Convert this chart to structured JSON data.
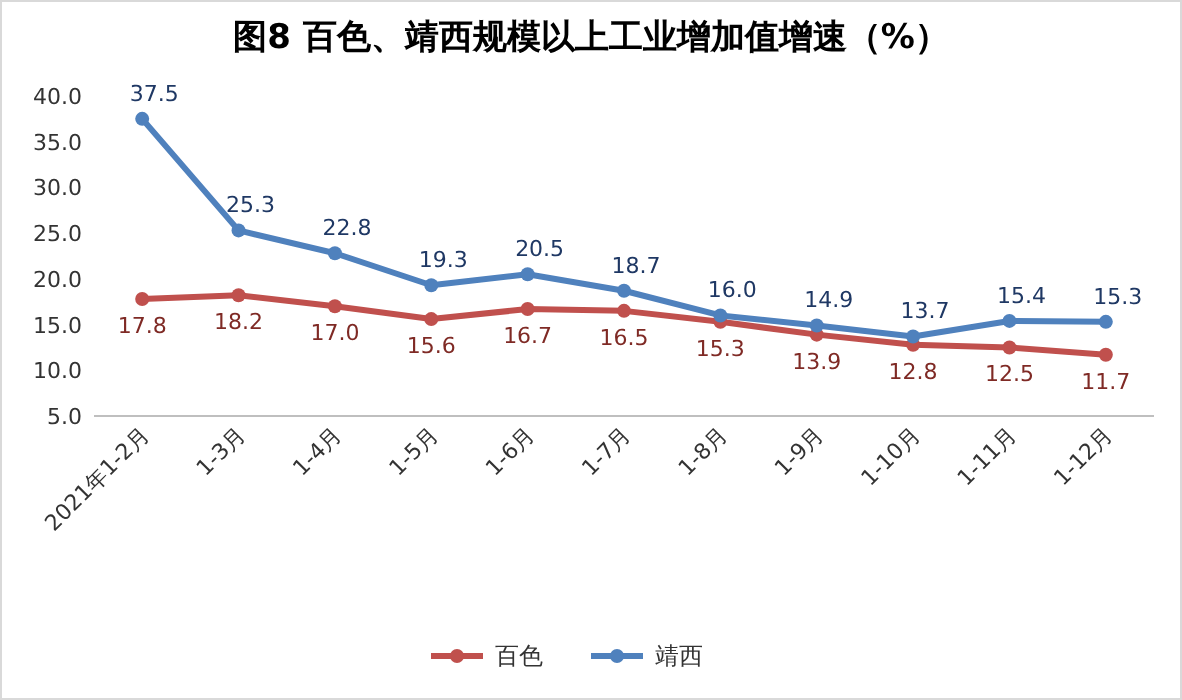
{
  "chart_data": {
    "type": "line",
    "title": "图8 百色、靖西规模以上工业增加值增速（%）",
    "categories": [
      "2021年1-2月",
      "1-3月",
      "1-4月",
      "1-5月",
      "1-6月",
      "1-7月",
      "1-8月",
      "1-9月",
      "1-10月",
      "1-11月",
      "1-12月"
    ],
    "series": [
      {
        "name": "百色",
        "color": "#c0504d",
        "values": [
          17.8,
          18.2,
          17.0,
          15.6,
          16.7,
          16.5,
          15.3,
          13.9,
          12.8,
          12.5,
          11.7
        ],
        "value_labels": [
          "17.8",
          "18.2",
          "17.0",
          "15.6",
          "16.7",
          "16.5",
          "15.3",
          "13.9",
          "12.8",
          "12.5",
          "11.7"
        ]
      },
      {
        "name": "靖西",
        "color": "#4f81bd",
        "values": [
          37.5,
          25.3,
          22.8,
          19.3,
          20.5,
          18.7,
          16.0,
          14.9,
          13.7,
          15.4,
          15.3
        ],
        "value_labels": [
          "37.5",
          "25.3",
          "22.8",
          "19.3",
          "20.5",
          "18.7",
          "16.0",
          "14.9",
          "13.7",
          "15.4",
          "15.3"
        ]
      }
    ],
    "ylim": [
      5,
      40
    ],
    "yticks": [
      {
        "value": 5,
        "label": "5.0"
      },
      {
        "value": 10,
        "label": "10.0"
      },
      {
        "value": 15,
        "label": "15.0"
      },
      {
        "value": 20,
        "label": "20.0"
      },
      {
        "value": 25,
        "label": "25.0"
      },
      {
        "value": 30,
        "label": "30.0"
      },
      {
        "value": 35,
        "label": "35.0"
      },
      {
        "value": 40,
        "label": "40.0"
      }
    ],
    "legend": "bottom",
    "marker": "circle",
    "line_style": "solid"
  }
}
